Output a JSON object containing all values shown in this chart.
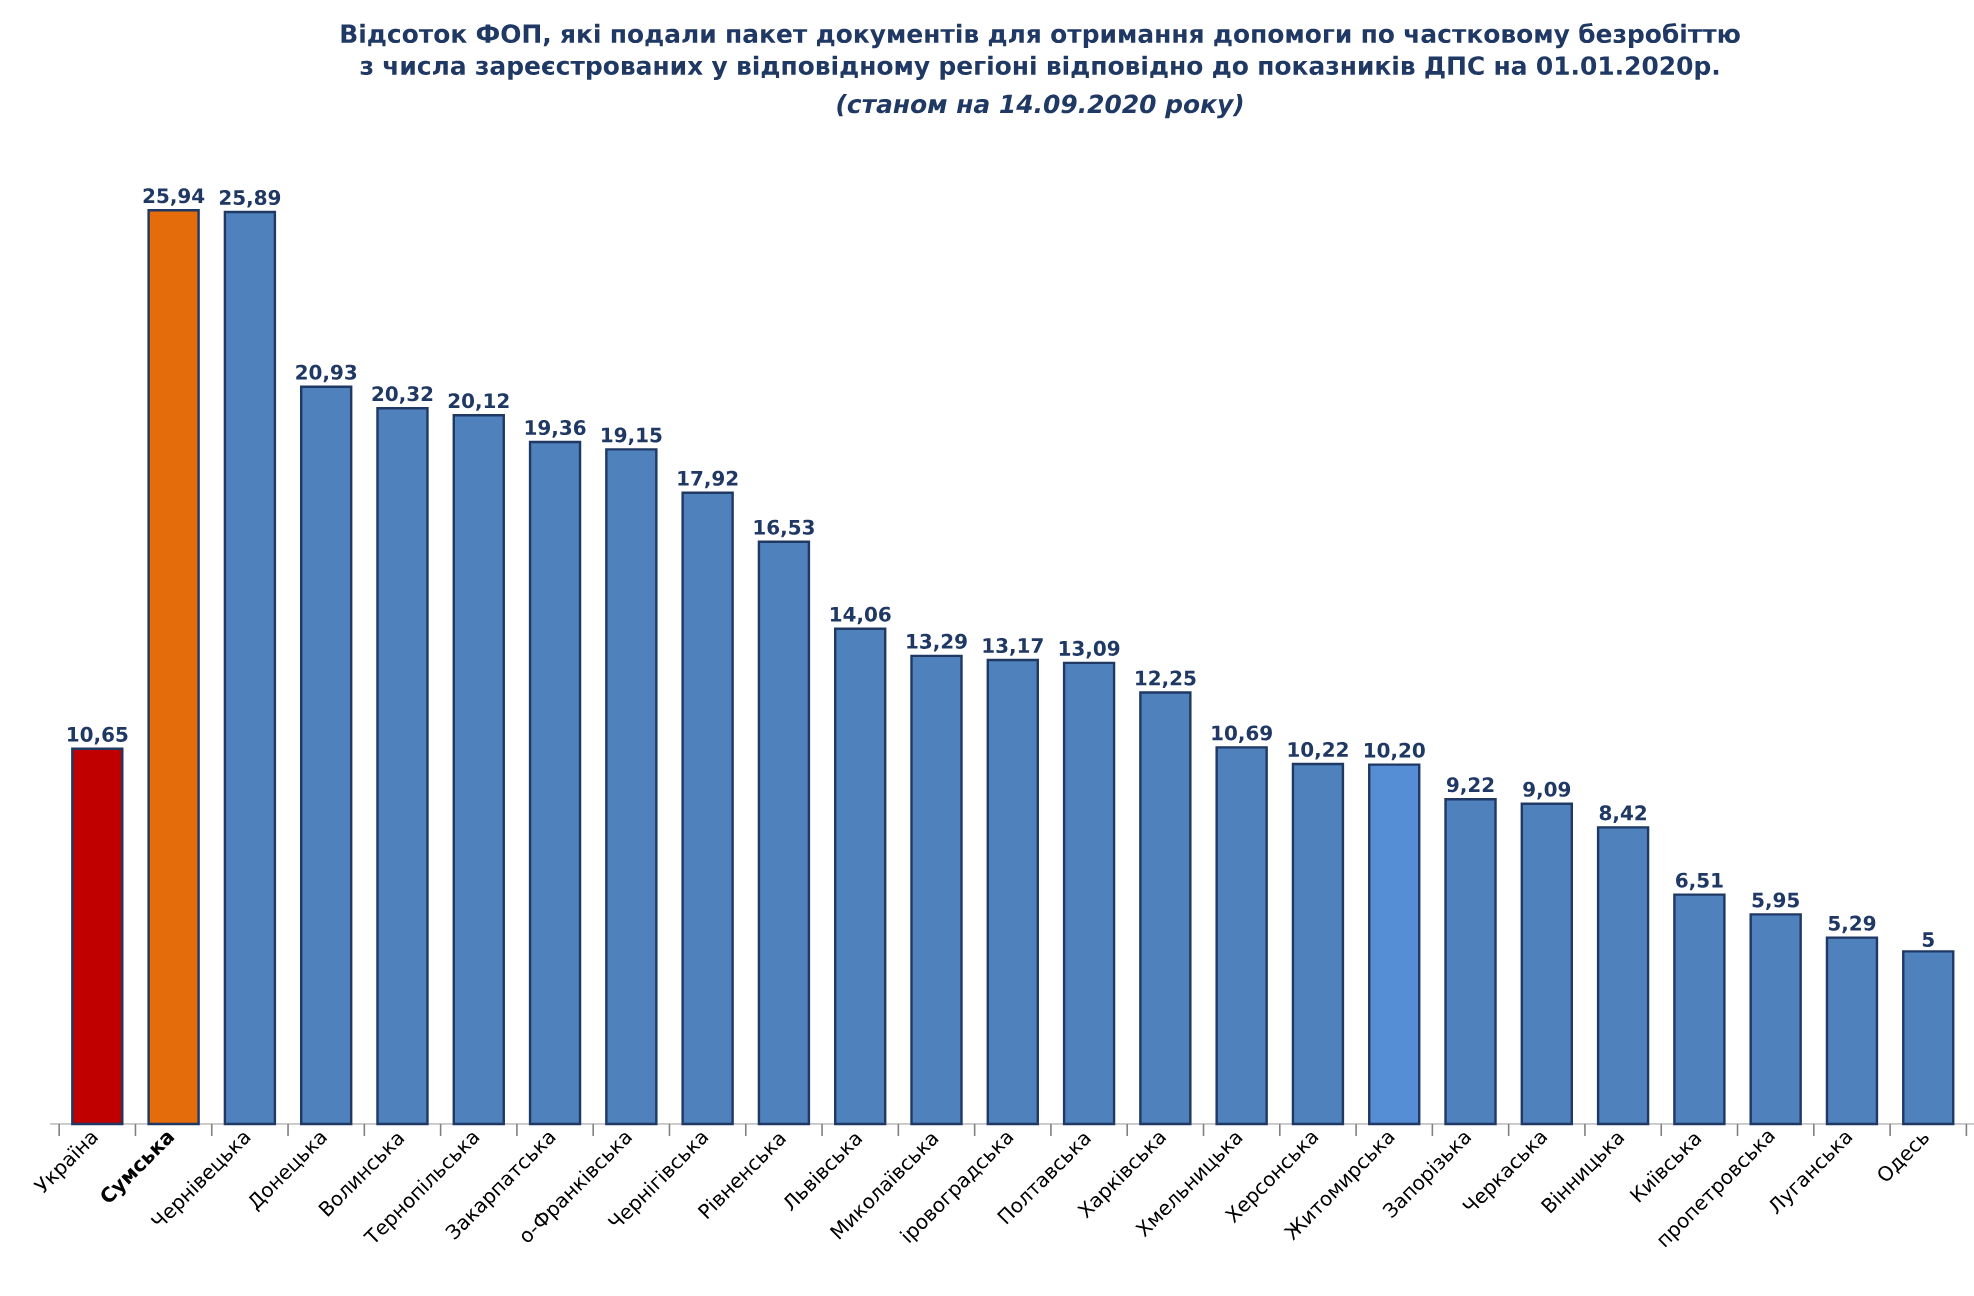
{
  "chart_data": {
    "type": "bar",
    "title": "Відсоток ФОП, які подали пакет документів для отримання допомоги по частковому безробіттю з числа зареєстрованих у відповідному регіоні відповідно до показників ДПС на 01.01.2020р.",
    "subtitle": "(станом на 14.09.2020 року)",
    "categories": [
      "Україна",
      "**Сумська**",
      "Чернівецька",
      "Донецька",
      "Волинська",
      "Тернопільська",
      "Закарпатська",
      "о-Франківська",
      "Чернігівська",
      "Рівненська",
      "Львівська",
      "Миколаївська",
      "іровоградська",
      "Полтавська",
      "Харківська",
      "Хмельницька",
      "Херсонська",
      "Житомирська",
      "Запорізька",
      "Черкаська",
      "Вінницька",
      "Київська",
      "пропетровська",
      "Луганська",
      "Одесь"
    ],
    "values": [
      10.65,
      25.94,
      25.89,
      20.93,
      20.32,
      20.12,
      19.36,
      19.15,
      17.92,
      16.53,
      14.06,
      13.29,
      13.17,
      13.09,
      12.25,
      10.69,
      10.22,
      10.2,
      9.22,
      9.09,
      8.42,
      6.51,
      5.95,
      5.29,
      4.9
    ],
    "value_labels": [
      "10,65",
      "25,94",
      "25,89",
      "20,93",
      "20,32",
      "20,12",
      "19,36",
      "19,15",
      "17,92",
      "16,53",
      "14,06",
      "13,29",
      "13,17",
      "13,09",
      "12,25",
      "10,69",
      "10,22",
      "10,20",
      "9,22",
      "9,09",
      "8,42",
      "6,51",
      "5,95",
      "5,29",
      "5"
    ],
    "colors": [
      "#c00000",
      "#e46c0a",
      "#4f81bd",
      "#4f81bd",
      "#4f81bd",
      "#4f81bd",
      "#4f81bd",
      "#4f81bd",
      "#4f81bd",
      "#4f81bd",
      "#4f81bd",
      "#4f81bd",
      "#4f81bd",
      "#4f81bd",
      "#4f81bd",
      "#4f81bd",
      "#4f81bd",
      "#558ed5",
      "#4f81bd",
      "#4f81bd",
      "#4f81bd",
      "#4f81bd",
      "#4f81bd",
      "#4f81bd",
      "#4f81bd"
    ],
    "orientation": "vertical"
  }
}
